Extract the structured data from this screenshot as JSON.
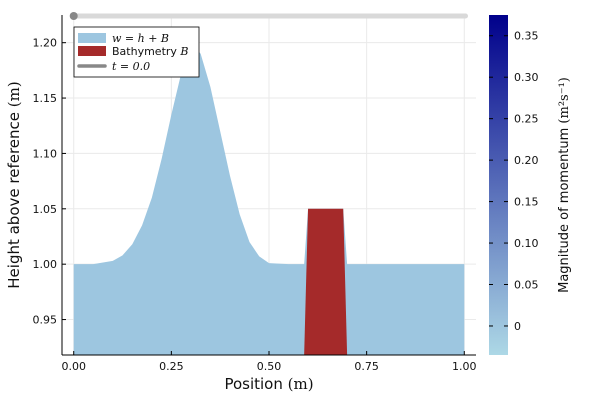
{
  "chart_data": {
    "type": "area",
    "xlabel": "Position",
    "xlabel_unit": "(m)",
    "ylabel": "Height above reference",
    "ylabel_unit": "(m)",
    "xlim": [
      -0.03,
      1.03
    ],
    "ylim": [
      0.918,
      1.225
    ],
    "xticks": [
      0.0,
      0.25,
      0.5,
      0.75,
      1.0
    ],
    "xtick_labels": [
      "0.00",
      "0.25",
      "0.50",
      "0.75",
      "1.00"
    ],
    "yticks": [
      0.95,
      1.0,
      1.05,
      1.1,
      1.15,
      1.2
    ],
    "ytick_labels": [
      "0.95",
      "1.00",
      "1.05",
      "1.10",
      "1.15",
      "1.20"
    ],
    "grid": true,
    "legend_position": "top-left",
    "series": [
      {
        "name": "w = h + B",
        "kind": "area",
        "color": "#9dc6e0",
        "x": [
          0.0,
          0.05,
          0.1,
          0.125,
          0.15,
          0.175,
          0.2,
          0.225,
          0.25,
          0.275,
          0.3,
          0.325,
          0.35,
          0.375,
          0.4,
          0.425,
          0.45,
          0.475,
          0.5,
          0.55,
          0.59,
          0.6,
          0.69,
          0.7,
          0.75,
          0.8,
          0.9,
          1.0
        ],
        "y": [
          1.0,
          1.0,
          1.003,
          1.008,
          1.018,
          1.035,
          1.06,
          1.095,
          1.135,
          1.172,
          1.2,
          1.19,
          1.16,
          1.12,
          1.08,
          1.045,
          1.02,
          1.007,
          1.001,
          1.0,
          1.0,
          1.05,
          1.05,
          1.0,
          1.0,
          1.0,
          1.0,
          1.0
        ]
      },
      {
        "name": "Bathymetry B",
        "kind": "area",
        "color": "#a52a2a",
        "x": [
          0.59,
          0.6,
          0.69,
          0.7
        ],
        "y": [
          0.918,
          1.05,
          1.05,
          0.918
        ]
      }
    ],
    "slider": {
      "name": "t = 0.0",
      "value": 0.0,
      "color": "#888888"
    },
    "colorbar": {
      "label": "Magnitude of momentum",
      "unit": "(m²s⁻¹)",
      "range": [
        -0.035,
        0.375
      ],
      "ticks": [
        0.0,
        0.05,
        0.1,
        0.15,
        0.2,
        0.25,
        0.3,
        0.35
      ],
      "tick_labels": [
        "0",
        "0.05",
        "0.10",
        "0.15",
        "0.20",
        "0.25",
        "0.30",
        "0.35"
      ],
      "color_low": "#add8e6",
      "color_high": "#00008b"
    }
  },
  "legend": {
    "entry1_label": "w = h + B",
    "entry2_label": "Bathymetry",
    "entry2_symbol": "B",
    "entry3_label": "t = 0.0"
  }
}
